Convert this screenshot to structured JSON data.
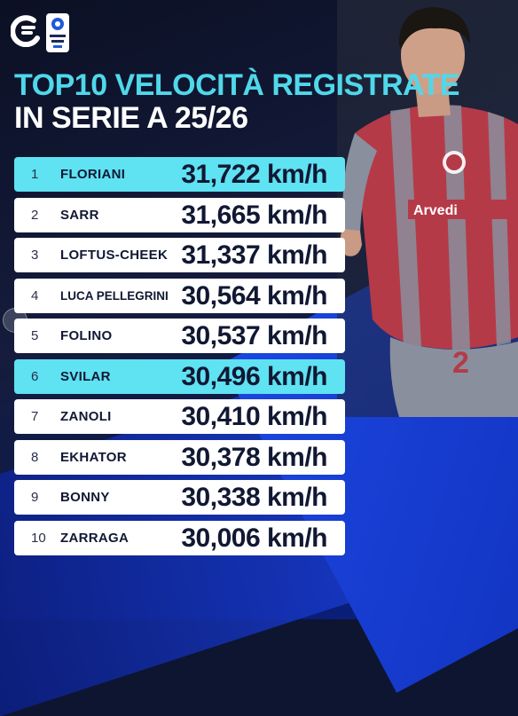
{
  "title": {
    "line1": "TOP10 VELOCITÀ REGISTRATE",
    "line2": "IN SERIE A 25/26"
  },
  "league_logo_text": "SERIE A",
  "colors": {
    "accent": "#5fe2f2",
    "title_accent": "#4fd8ea",
    "row": "#ffffff",
    "text_dark": "#111833",
    "blue": "#1c47e0"
  },
  "ranking": [
    {
      "rank": "1",
      "name": "FLORIANI",
      "speed": "31,722 km/h",
      "highlight": true
    },
    {
      "rank": "2",
      "name": "SARR",
      "speed": "31,665 km/h",
      "highlight": false
    },
    {
      "rank": "3",
      "name": "LOFTUS-CHEEK",
      "speed": "31,337 km/h",
      "highlight": false
    },
    {
      "rank": "4",
      "name": "LUCA PELLEGRINI",
      "speed": "30,564 km/h",
      "highlight": false
    },
    {
      "rank": "5",
      "name": "FOLINO",
      "speed": "30,537 km/h",
      "highlight": false
    },
    {
      "rank": "6",
      "name": "SVILAR",
      "speed": "30,496 km/h",
      "highlight": true
    },
    {
      "rank": "7",
      "name": "ZANOLI",
      "speed": "30,410 km/h",
      "highlight": false
    },
    {
      "rank": "8",
      "name": "EKHATOR",
      "speed": "30,378 km/h",
      "highlight": false
    },
    {
      "rank": "9",
      "name": "BONNY",
      "speed": "30,338 km/h",
      "highlight": false
    },
    {
      "rank": "10",
      "name": "ZARRAGA",
      "speed": "30,006 km/h",
      "highlight": false
    }
  ],
  "player_jersey": {
    "sponsor": "Arvedi",
    "number": "2"
  },
  "icons": {
    "club_logo": "club-logo-icon",
    "league_logo": "serie-a-logo-icon",
    "nav": "carousel-nav-icon"
  }
}
